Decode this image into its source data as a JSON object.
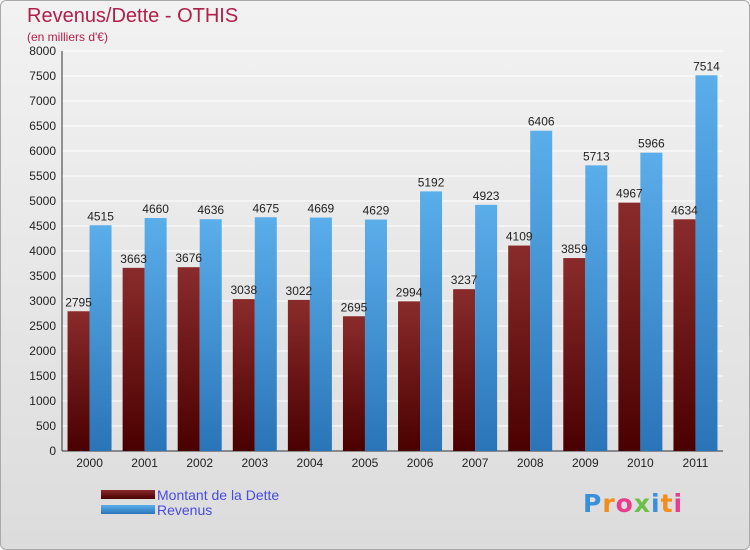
{
  "chart_data": {
    "type": "bar",
    "title": "Revenus/Dette - OTHIS",
    "subtitle": "(en milliers d'€)",
    "categories": [
      "2000",
      "2001",
      "2002",
      "2003",
      "2004",
      "2005",
      "2006",
      "2007",
      "2008",
      "2009",
      "2010",
      "2011"
    ],
    "series": [
      {
        "name": "Montant de la Dette",
        "color": "#7a1e1e",
        "values": [
          2795,
          3663,
          3676,
          3038,
          3022,
          2695,
          2994,
          3237,
          4109,
          3859,
          4967,
          4634
        ]
      },
      {
        "name": "Revenus",
        "color": "#4da1e0",
        "values": [
          4515,
          4660,
          4636,
          4675,
          4669,
          4629,
          5192,
          4923,
          6406,
          5713,
          5966,
          7514
        ]
      }
    ],
    "yticks": [
      0,
      500,
      1000,
      1500,
      2000,
      2500,
      3000,
      3500,
      4000,
      4500,
      5000,
      5500,
      6000,
      6500,
      7000,
      7500,
      8000
    ],
    "ylim": [
      0,
      8000
    ],
    "grid": true,
    "legend_position": "bottom-left"
  },
  "logo": {
    "text": "Proxiti",
    "letter_colors": [
      "#3a8fd9",
      "#f28c1c",
      "#e83c8c",
      "#6cc04a",
      "#3a8fd9",
      "#f28c1c",
      "#e83c8c"
    ]
  }
}
